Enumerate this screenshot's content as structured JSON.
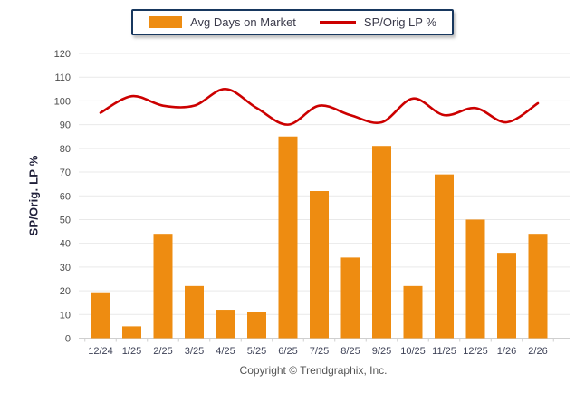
{
  "legend": {
    "bar_label": "Avg Days on Market",
    "line_label": "SP/Orig LP %"
  },
  "y_axis_title": "SP/Orig. LP %",
  "footer": "Copyright © Trendgraphix, Inc.",
  "colors": {
    "bar": "#EE8C11",
    "line": "#CC0000",
    "legend_border": "#17375E",
    "grid": "#E9E9E9",
    "axis": "#CFCFCF",
    "x_tick_label": "#3E4257",
    "y_tick_label": "#4D4D4D",
    "footer_text": "#555555"
  },
  "chart_data": {
    "type": "bar+line combo",
    "title": "",
    "xlabel": "",
    "ylabel": "SP/Orig. LP %",
    "ylim": [
      0,
      120
    ],
    "ytick_step": 10,
    "grid": true,
    "legend_position": "top-center",
    "categories": [
      "12/24",
      "1/25",
      "2/25",
      "3/25",
      "4/25",
      "5/25",
      "6/25",
      "7/25",
      "8/25",
      "9/25",
      "10/25",
      "11/25",
      "12/25",
      "1/26",
      "2/26"
    ],
    "series": [
      {
        "name": "Avg Days on Market",
        "type": "bar",
        "values": [
          19,
          5,
          44,
          22,
          12,
          11,
          85,
          62,
          34,
          81,
          22,
          69,
          50,
          36,
          44
        ]
      },
      {
        "name": "SP/Orig LP %",
        "type": "line",
        "values": [
          95,
          102,
          98,
          98,
          105,
          97,
          90,
          98,
          94,
          91,
          101,
          94,
          97,
          91,
          99
        ]
      }
    ]
  }
}
